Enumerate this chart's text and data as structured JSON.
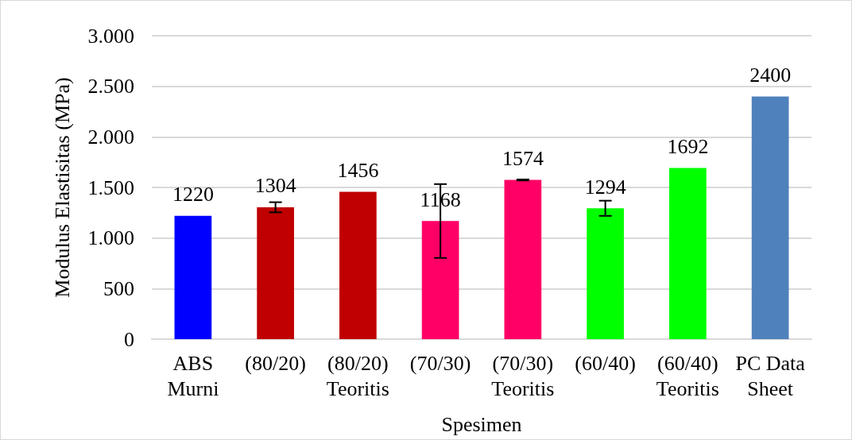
{
  "chart_data": {
    "type": "bar",
    "xlabel": "Spesimen",
    "ylabel": "Modulus Elastisitas (MPa)",
    "categories": [
      "ABS\nMurni",
      "(80/20)",
      "(80/20)\nTeoritis",
      "(70/30)",
      "(70/30)\nTeoritis",
      "(60/40)",
      "(60/40)\nTeoritis",
      "PC Data\nSheet"
    ],
    "values": [
      1220,
      1304,
      1456,
      1168,
      1574,
      1294,
      1692,
      2400
    ],
    "colors": [
      "#0000ff",
      "#c00000",
      "#c00000",
      "#ff0066",
      "#ff0066",
      "#00ff00",
      "#00ff00",
      "#4f81bd"
    ],
    "errors": [
      null,
      50,
      null,
      365,
      5,
      75,
      null,
      null
    ],
    "ylim": [
      0,
      3000
    ],
    "yticks": [
      0,
      500,
      {
        "value": 1000,
        "label": "1.000"
      },
      {
        "value": 1500,
        "label": "1.500"
      },
      {
        "value": 2000,
        "label": "2.000"
      },
      {
        "value": 2500,
        "label": "2.500"
      },
      {
        "value": 3000,
        "label": "3.000"
      }
    ],
    "grid": "y",
    "data_labels": true
  }
}
